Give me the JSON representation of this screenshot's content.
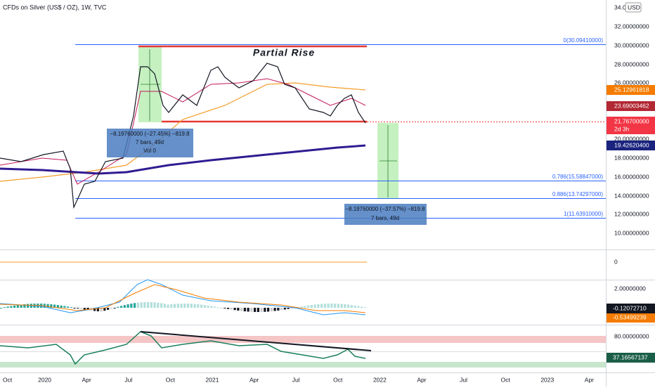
{
  "header": {
    "title": "CFDs on Silver (US$ / OZ), 1W, TVC"
  },
  "price_axis": {
    "top": "34.0",
    "currency": "USD",
    "labels": [
      "32.00000000",
      "30.00000000",
      "28.00000000",
      "26.00000000",
      "20.00000000",
      "18.00000000",
      "16.00000000",
      "14.00000000",
      "12.00000000",
      "10.00000000"
    ]
  },
  "badges": {
    "ma_orange": "25.12961818",
    "ma_red": "23.69003462",
    "last_price": "21.76700000",
    "countdown": "2d 3h",
    "ma_navy": "19.42620400"
  },
  "fib_levels": [
    "0(30.09410000)",
    "0.786(15.58847000)",
    "0.886(13.74297000)",
    "1(11.63910000)"
  ],
  "annotation": "Partial Rise",
  "measure_1": {
    "change": "−8.19760000 (−27.45%) −819.8",
    "bars": "7 bars, 49d",
    "volume": "Vol 0"
  },
  "measure_2": {
    "change": "−8.19760000 (−37.57%) −819.8",
    "bars": "7 bars, 49d"
  },
  "volume_pane": {
    "axis_label": "0"
  },
  "macd_pane": {
    "axis_label": "2.00000000",
    "macd": "-0.12072710",
    "signal": "-0.53499239"
  },
  "rsi_pane": {
    "axis_label": "80.00000000",
    "rsi": "37.16567137"
  },
  "time_axis": [
    "Oct",
    "2020",
    "Apr",
    "Jul",
    "Oct",
    "2021",
    "Apr",
    "Jul",
    "Oct",
    "2022",
    "Apr",
    "Jul",
    "Oct",
    "2023",
    "Apr"
  ]
}
